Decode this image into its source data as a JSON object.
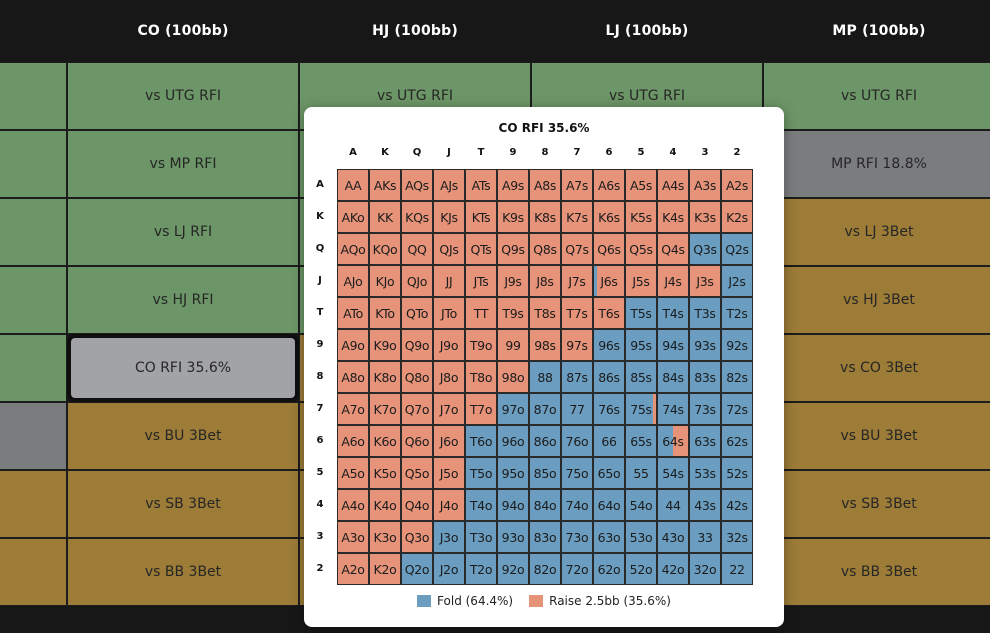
{
  "colors": {
    "fold": "#6a9dc0",
    "raise": "#e6937a",
    "green": "#6c9667",
    "gray": "#7b7c7f",
    "gold": "#9c7c37"
  },
  "headers": [
    "CO (100bb)",
    "HJ (100bb)",
    "LJ (100bb)",
    "MP (100bb)"
  ],
  "columns": [
    {
      "cells": [
        {
          "label": "",
          "color": "green"
        },
        {
          "label": "",
          "color": "green"
        },
        {
          "label": "",
          "color": "green"
        },
        {
          "label": "",
          "color": "green"
        },
        {
          "label": "",
          "color": "green"
        },
        {
          "label": "",
          "color": "gray"
        },
        {
          "label": "",
          "color": "gold"
        },
        {
          "label": "",
          "color": "gold"
        }
      ]
    },
    {
      "cells": [
        {
          "label": "vs UTG RFI",
          "color": "green"
        },
        {
          "label": "vs MP RFI",
          "color": "green"
        },
        {
          "label": "vs LJ RFI",
          "color": "green"
        },
        {
          "label": "vs HJ RFI",
          "color": "green"
        },
        {
          "label": "CO RFI 35.6%",
          "color": "gray",
          "selected": true
        },
        {
          "label": "vs BU 3Bet",
          "color": "gold"
        },
        {
          "label": "vs SB 3Bet",
          "color": "gold"
        },
        {
          "label": "vs BB 3Bet",
          "color": "gold"
        }
      ]
    },
    {
      "cells": [
        {
          "label": "vs UTG RFI",
          "color": "green"
        },
        {
          "label": "",
          "color": "green"
        },
        {
          "label": "",
          "color": "green"
        },
        {
          "label": "",
          "color": "green"
        },
        {
          "label": "",
          "color": "gold"
        },
        {
          "label": "",
          "color": "gold"
        },
        {
          "label": "",
          "color": "gold"
        },
        {
          "label": "",
          "color": "gold"
        }
      ]
    },
    {
      "cells": [
        {
          "label": "vs UTG RFI",
          "color": "green"
        },
        {
          "label": "",
          "color": "green"
        },
        {
          "label": "",
          "color": "gold"
        },
        {
          "label": "",
          "color": "gold"
        },
        {
          "label": "",
          "color": "gold"
        },
        {
          "label": "",
          "color": "gold"
        },
        {
          "label": "",
          "color": "gold"
        },
        {
          "label": "",
          "color": "gold"
        }
      ]
    },
    {
      "cells": [
        {
          "label": "vs UTG RFI",
          "color": "green"
        },
        {
          "label": "MP RFI 18.8%",
          "color": "gray"
        },
        {
          "label": "vs LJ 3Bet",
          "color": "gold"
        },
        {
          "label": "vs HJ 3Bet",
          "color": "gold"
        },
        {
          "label": "vs CO 3Bet",
          "color": "gold"
        },
        {
          "label": "vs BU 3Bet",
          "color": "gold"
        },
        {
          "label": "vs SB 3Bet",
          "color": "gold"
        },
        {
          "label": "vs BB 3Bet",
          "color": "gold"
        }
      ]
    }
  ],
  "popup": {
    "title": "CO RFI 35.6%",
    "ranks": [
      "A",
      "K",
      "Q",
      "J",
      "T",
      "9",
      "8",
      "7",
      "6",
      "5",
      "4",
      "3",
      "2"
    ],
    "raise_counts": [
      13,
      13,
      11,
      12,
      9,
      8,
      6,
      5,
      4,
      4,
      4,
      3,
      2
    ],
    "partial_cells": [
      {
        "row": 3,
        "col": 8,
        "fold_fraction": 0.1
      },
      {
        "row": 7,
        "col": 9,
        "fold_fraction": 0.9
      },
      {
        "row": 8,
        "col": 10,
        "fold_fraction": 0.5
      }
    ],
    "legend": [
      {
        "label": "Fold (64.4%)",
        "color": "fold"
      },
      {
        "label": "Raise 2.5bb (35.6%)",
        "color": "raise"
      }
    ]
  }
}
